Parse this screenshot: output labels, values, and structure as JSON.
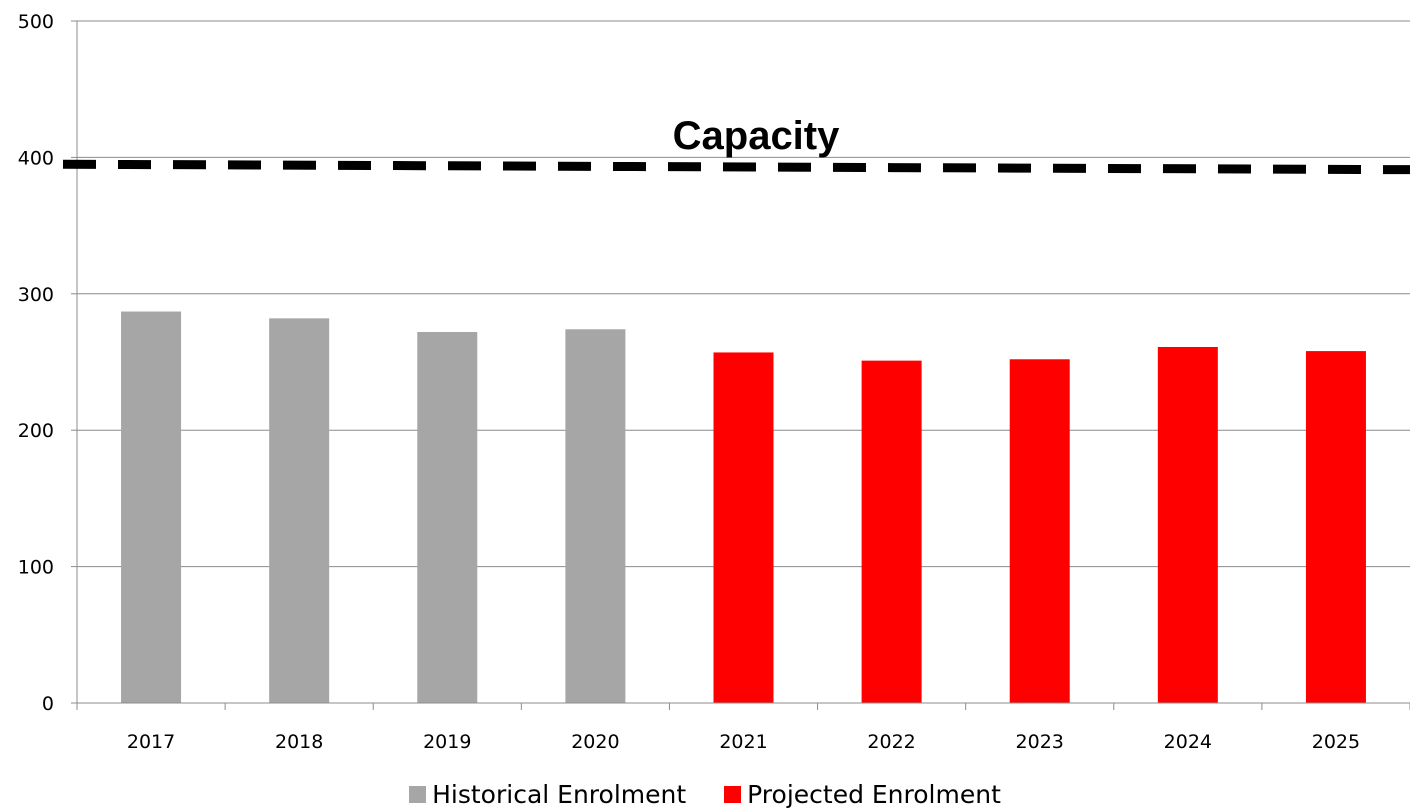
{
  "chart_data": {
    "type": "bar",
    "title": "",
    "xlabel": "",
    "ylabel": "",
    "ylim": [
      0,
      500
    ],
    "yticks": [
      0,
      100,
      200,
      300,
      400,
      500
    ],
    "grid": true,
    "legend_position": "bottom",
    "categories": [
      "2017",
      "2018",
      "2019",
      "2020",
      "2021",
      "2022",
      "2023",
      "2024",
      "2025"
    ],
    "series": [
      {
        "name": "Historical Enrolment",
        "color": "#a6a6a6",
        "values": [
          287,
          282,
          272,
          274,
          null,
          null,
          null,
          null,
          null
        ]
      },
      {
        "name": "Projected Enrolment",
        "color": "#ff0000",
        "values": [
          null,
          null,
          null,
          null,
          257,
          251,
          252,
          261,
          258
        ]
      }
    ],
    "capacity": {
      "label": "Capacity",
      "value": 393,
      "style": "dashed",
      "color": "#000000"
    }
  }
}
